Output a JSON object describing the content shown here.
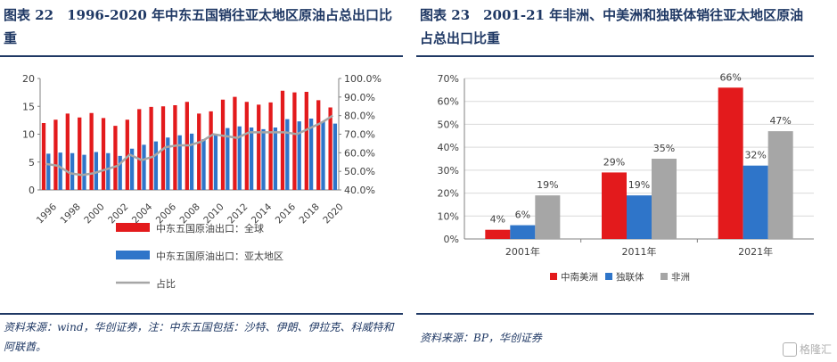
{
  "left": {
    "title": "图表 22　1996-2020 年中东五国销往亚太地区原油占总出口比重",
    "source": "资料来源：wind，华创证券，注：中东五国包括：沙特、伊朗、伊拉克、科威特和阿联酋。"
  },
  "right": {
    "title": "图表 23　2001-21 年非洲、中美洲和独联体销往亚太地区原油占总出口比重",
    "source": "资料来源：BP，华创证券"
  },
  "watermark": "格隆汇",
  "chart_data": [
    {
      "type": "bar",
      "categories": [
        "1996",
        "1997",
        "1998",
        "1999",
        "2000",
        "2001",
        "2002",
        "2003",
        "2004",
        "2005",
        "2006",
        "2007",
        "2008",
        "2009",
        "2010",
        "2011",
        "2012",
        "2013",
        "2014",
        "2015",
        "2016",
        "2017",
        "2018",
        "2019",
        "2020"
      ],
      "x_tick_labels": [
        "1996",
        "1998",
        "2000",
        "2002",
        "2004",
        "2006",
        "2008",
        "2010",
        "2012",
        "2014",
        "2016",
        "2018",
        "2020"
      ],
      "y_ticks_left": [
        "0",
        "5",
        "10",
        "15",
        "20"
      ],
      "y_ticks_right": [
        "40.0%",
        "50.0%",
        "60.0%",
        "70.0%",
        "80.0%",
        "90.0%",
        "100.0%"
      ],
      "ylim_left": [
        0,
        20
      ],
      "ylim_right": [
        0.4,
        1.0
      ],
      "series": [
        {
          "name": "中东五国原油出口：全球",
          "axis": "left",
          "type": "bar",
          "color": "#e31a1c",
          "values": [
            12.0,
            12.6,
            13.7,
            13.0,
            13.8,
            12.9,
            11.5,
            12.6,
            14.5,
            14.9,
            15.0,
            15.2,
            15.8,
            13.7,
            14.1,
            16.2,
            16.7,
            15.8,
            15.3,
            15.7,
            17.8,
            17.5,
            17.6,
            16.1,
            14.8
          ]
        },
        {
          "name": "中东五国原油出口：亚太地区",
          "axis": "left",
          "type": "bar",
          "color": "#2f75c9",
          "values": [
            6.5,
            6.7,
            6.6,
            6.3,
            6.8,
            6.6,
            6.1,
            7.4,
            8.1,
            8.7,
            9.4,
            9.8,
            10.1,
            9.1,
            9.9,
            11.1,
            11.4,
            11.2,
            10.9,
            11.2,
            12.7,
            12.3,
            12.8,
            12.3,
            11.9
          ]
        },
        {
          "name": "占比",
          "axis": "right",
          "type": "line",
          "color": "#a6a6a6",
          "values": [
            0.54,
            0.53,
            0.49,
            0.48,
            0.49,
            0.51,
            0.53,
            0.59,
            0.56,
            0.58,
            0.63,
            0.64,
            0.64,
            0.66,
            0.7,
            0.69,
            0.68,
            0.71,
            0.71,
            0.71,
            0.71,
            0.7,
            0.73,
            0.76,
            0.8
          ]
        }
      ],
      "legend_position": "bottom",
      "grid": false
    },
    {
      "type": "bar",
      "categories": [
        "2001年",
        "2011年",
        "2021年"
      ],
      "y_ticks": [
        "0%",
        "10%",
        "20%",
        "30%",
        "40%",
        "50%",
        "60%",
        "70%"
      ],
      "ylim": [
        0,
        0.7
      ],
      "series": [
        {
          "name": "中南美洲",
          "color": "#e31a1c",
          "values": [
            0.04,
            0.29,
            0.66
          ],
          "labels": [
            "4%",
            "29%",
            "66%"
          ]
        },
        {
          "name": "独联体",
          "color": "#2f75c9",
          "values": [
            0.06,
            0.19,
            0.32
          ],
          "labels": [
            "6%",
            "19%",
            "32%"
          ]
        },
        {
          "name": "非洲",
          "color": "#a6a6a6",
          "values": [
            0.19,
            0.35,
            0.47
          ],
          "labels": [
            "19%",
            "35%",
            "47%"
          ]
        }
      ],
      "legend_position": "bottom",
      "grid": true
    }
  ]
}
